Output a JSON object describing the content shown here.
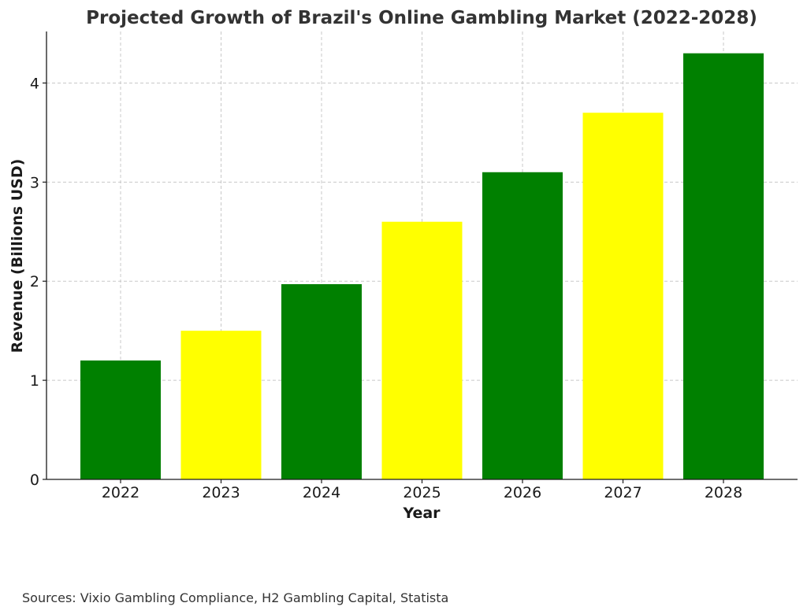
{
  "chart_data": {
    "type": "bar",
    "title": "Projected Growth of Brazil's Online Gambling Market (2022-2028)",
    "xlabel": "Year",
    "ylabel": "Revenue (Billions USD)",
    "categories": [
      "2022",
      "2023",
      "2024",
      "2025",
      "2026",
      "2027",
      "2028"
    ],
    "values": [
      1.2,
      1.5,
      1.97,
      2.6,
      3.1,
      3.7,
      4.3
    ],
    "bar_colors": [
      "#008000",
      "#ffff00",
      "#008000",
      "#ffff00",
      "#008000",
      "#ffff00",
      "#008000"
    ],
    "ylim": [
      0,
      4.52
    ],
    "yticks": [
      0,
      1,
      2,
      3,
      4
    ],
    "grid": true,
    "legend": "none"
  },
  "footer": {
    "sources": "Sources: Vixio Gambling Compliance, H2 Gambling Capital, Statista"
  }
}
